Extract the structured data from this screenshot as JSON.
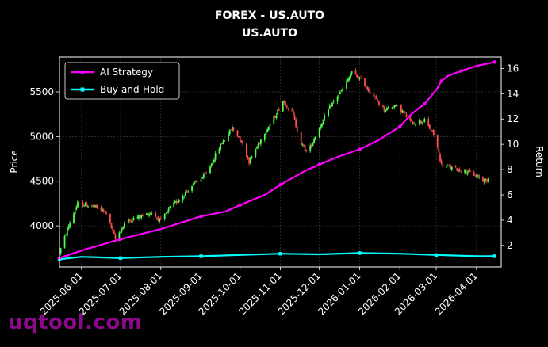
{
  "chart_data": {
    "type": "candlestick+line",
    "title": "FOREX - US.AUTO",
    "subtitle": "US.AUTO",
    "ylabel_left": "Price",
    "ylabel_right": "Return",
    "ylim_left": [
      3540,
      5890
    ],
    "ylim_right": [
      0.3,
      16.9
    ],
    "left_ticks": [
      4000,
      4500,
      5000,
      5500
    ],
    "right_ticks": [
      2,
      4,
      6,
      8,
      10,
      12,
      14,
      16
    ],
    "x_range": [
      "2025-05-15",
      "2026-04-20"
    ],
    "x_ticks": [
      "2025-06-01",
      "2025-07-01",
      "2025-08-01",
      "2025-09-01",
      "2025-10-01",
      "2025-11-01",
      "2025-12-01",
      "2026-01-01",
      "2026-02-01",
      "2026-03-01",
      "2026-04-01"
    ],
    "grid": true,
    "legend": "top-left",
    "colors": {
      "background": "#000000",
      "up": "#4cff4c",
      "down": "#ff4c4c",
      "ai_strategy": "#ff00ff",
      "buy_and_hold": "#00ffff",
      "text": "#ffffff",
      "grid": "#444444"
    },
    "price_path": [
      [
        "2025-05-15",
        3700
      ],
      [
        "2025-05-22",
        4000
      ],
      [
        "2025-05-29",
        4250
      ],
      [
        "2025-06-10",
        4220
      ],
      [
        "2025-06-20",
        4150
      ],
      [
        "2025-06-27",
        3850
      ],
      [
        "2025-07-05",
        4050
      ],
      [
        "2025-07-15",
        4100
      ],
      [
        "2025-07-25",
        4150
      ],
      [
        "2025-08-01",
        4050
      ],
      [
        "2025-08-08",
        4200
      ],
      [
        "2025-08-15",
        4300
      ],
      [
        "2025-08-25",
        4450
      ],
      [
        "2025-09-05",
        4580
      ],
      [
        "2025-09-15",
        4880
      ],
      [
        "2025-09-25",
        5100
      ],
      [
        "2025-10-02",
        4950
      ],
      [
        "2025-10-08",
        4720
      ],
      [
        "2025-10-20",
        5050
      ],
      [
        "2025-10-27",
        5200
      ],
      [
        "2025-11-03",
        5400
      ],
      [
        "2025-11-10",
        5280
      ],
      [
        "2025-11-17",
        4920
      ],
      [
        "2025-11-22",
        4820
      ],
      [
        "2025-12-01",
        5100
      ],
      [
        "2025-12-10",
        5350
      ],
      [
        "2025-12-20",
        5550
      ],
      [
        "2025-12-26",
        5720
      ],
      [
        "2026-01-03",
        5620
      ],
      [
        "2026-01-10",
        5480
      ],
      [
        "2026-01-20",
        5300
      ],
      [
        "2026-01-28",
        5350
      ],
      [
        "2026-02-03",
        5280
      ],
      [
        "2026-02-10",
        5150
      ],
      [
        "2026-02-20",
        5180
      ],
      [
        "2026-02-28",
        5000
      ],
      [
        "2026-03-05",
        4680
      ],
      [
        "2026-03-15",
        4640
      ],
      [
        "2026-03-22",
        4620
      ],
      [
        "2026-04-01",
        4560
      ],
      [
        "2026-04-08",
        4500
      ],
      [
        "2026-04-12",
        4560
      ]
    ],
    "series": [
      {
        "name": "AI Strategy",
        "points": [
          [
            "2025-05-15",
            1.0
          ],
          [
            "2025-06-01",
            1.6
          ],
          [
            "2025-07-01",
            2.5
          ],
          [
            "2025-08-01",
            3.3
          ],
          [
            "2025-09-01",
            4.3
          ],
          [
            "2025-09-20",
            4.7
          ],
          [
            "2025-10-01",
            5.2
          ],
          [
            "2025-10-20",
            6.0
          ],
          [
            "2025-11-01",
            6.8
          ],
          [
            "2025-11-20",
            7.9
          ],
          [
            "2025-12-01",
            8.4
          ],
          [
            "2025-12-15",
            9.0
          ],
          [
            "2026-01-01",
            9.6
          ],
          [
            "2026-01-15",
            10.3
          ],
          [
            "2026-02-01",
            11.4
          ],
          [
            "2026-02-10",
            12.4
          ],
          [
            "2026-02-20",
            13.2
          ],
          [
            "2026-03-01",
            14.3
          ],
          [
            "2026-03-05",
            15.0
          ],
          [
            "2026-03-10",
            15.4
          ],
          [
            "2026-03-20",
            15.8
          ],
          [
            "2026-04-01",
            16.2
          ],
          [
            "2026-04-15",
            16.5
          ]
        ]
      },
      {
        "name": "Buy-and-Hold",
        "points": [
          [
            "2025-05-15",
            0.9
          ],
          [
            "2025-06-01",
            1.1
          ],
          [
            "2025-07-01",
            1.0
          ],
          [
            "2025-08-01",
            1.1
          ],
          [
            "2025-09-01",
            1.15
          ],
          [
            "2025-10-01",
            1.25
          ],
          [
            "2025-11-01",
            1.35
          ],
          [
            "2025-12-01",
            1.3
          ],
          [
            "2026-01-01",
            1.4
          ],
          [
            "2026-02-01",
            1.35
          ],
          [
            "2026-03-01",
            1.25
          ],
          [
            "2026-04-01",
            1.15
          ],
          [
            "2026-04-15",
            1.15
          ]
        ]
      }
    ]
  },
  "watermark": "uqtool.com"
}
